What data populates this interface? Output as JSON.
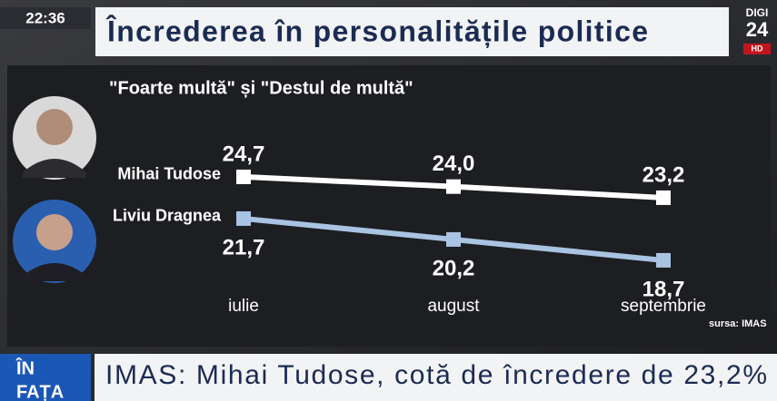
{
  "screen": {
    "clock": "22:36",
    "channel": "DIGI",
    "channel_number": "24",
    "channel_hd": "HD",
    "ticker_tag_line1": "ÎN",
    "ticker_tag_line2": "FAȚA",
    "ticker": "IMAS: Mihai Tudose, cotă de încredere de 23,2%",
    "source": "sursa: IMAS"
  },
  "chart_data": {
    "type": "line",
    "title": "Încrederea în personalitățile politice",
    "subtitle": "\"Foarte multă\" și \"Destul de multă\"",
    "categories": [
      "iulie",
      "august",
      "septembrie"
    ],
    "series": [
      {
        "name": "Mihai Tudose",
        "color": "#ffffff",
        "values": [
          24.7,
          24.0,
          23.2
        ],
        "value_labels": [
          "24,7",
          "24,0",
          "23,2"
        ]
      },
      {
        "name": "Liviu Dragnea",
        "color": "#a9c3e3",
        "values": [
          21.7,
          20.2,
          18.7
        ],
        "value_labels": [
          "21,7",
          "20,2",
          "18,7"
        ]
      }
    ],
    "ylim": [
      17,
      26
    ]
  }
}
